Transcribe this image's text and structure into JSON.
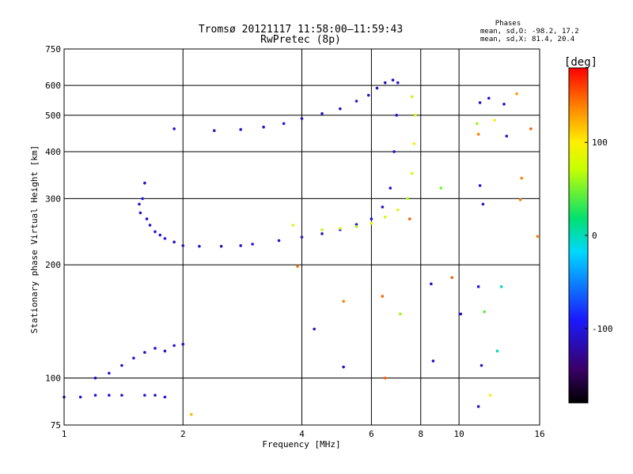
{
  "title": "Tromsø 20121117 11:58:00–11:59:43",
  "subtitle": "RwPretec (8p)",
  "stats": {
    "heading": "Phases",
    "line1": "mean, sd,O: -98.2, 17.2",
    "line2": "mean, sd,X:  81.4, 20.4"
  },
  "colorbar": {
    "label": "[deg]",
    "ticks": [
      "100",
      "0",
      "-100"
    ],
    "tick_values": [
      100,
      0,
      -100
    ],
    "range": [
      -180,
      180
    ]
  },
  "chart_data": {
    "type": "scatter",
    "title": "Tromsø 20121117 11:58:00–11:59:43",
    "subtitle": "RwPretec (8p)",
    "xlabel": "Frequency [MHz]",
    "ylabel": "Stationary phase Virtual Height [km]",
    "xscale": "log",
    "yscale": "log",
    "xlim": [
      1,
      16
    ],
    "ylim": [
      75,
      750
    ],
    "xticks": [
      1,
      2,
      4,
      6,
      8,
      10,
      16
    ],
    "xtick_labels": [
      "1",
      "2",
      "4",
      "6",
      "8",
      "10",
      "16"
    ],
    "yticks": [
      75,
      100,
      200,
      300,
      400,
      500,
      600,
      750
    ],
    "ytick_labels": [
      "75",
      "100",
      "200",
      "300",
      "400",
      "500",
      "600",
      "750"
    ],
    "grid": true,
    "color_scale": [
      "#000000",
      "#3a0066",
      "#1a1aff",
      "#00d8ff",
      "#00e070",
      "#c8ff00",
      "#ffee00",
      "#ff8800",
      "#ff0000"
    ],
    "series": [
      {
        "values": [
          {
            "x": 1.55,
            "y": 290,
            "phase": -110
          },
          {
            "x": 1.56,
            "y": 275,
            "phase": -105
          },
          {
            "x": 1.58,
            "y": 300,
            "phase": -100
          },
          {
            "x": 1.6,
            "y": 330,
            "phase": -110
          },
          {
            "x": 1.62,
            "y": 265,
            "phase": -100
          },
          {
            "x": 1.65,
            "y": 255,
            "phase": -110
          },
          {
            "x": 1.7,
            "y": 245,
            "phase": -100
          },
          {
            "x": 1.75,
            "y": 240,
            "phase": -110
          },
          {
            "x": 1.8,
            "y": 235,
            "phase": -100
          },
          {
            "x": 1.9,
            "y": 230,
            "phase": -110
          },
          {
            "x": 2.0,
            "y": 225,
            "phase": -110
          },
          {
            "x": 2.2,
            "y": 224,
            "phase": -105
          },
          {
            "x": 2.5,
            "y": 224,
            "phase": -120
          },
          {
            "x": 2.8,
            "y": 225,
            "phase": -110
          },
          {
            "x": 3.0,
            "y": 227,
            "phase": -100
          },
          {
            "x": 3.5,
            "y": 232,
            "phase": -110
          },
          {
            "x": 4.0,
            "y": 237,
            "phase": -105
          },
          {
            "x": 4.5,
            "y": 242,
            "phase": -110
          },
          {
            "x": 5.0,
            "y": 248,
            "phase": -100
          },
          {
            "x": 5.5,
            "y": 256,
            "phase": -110
          },
          {
            "x": 6.0,
            "y": 265,
            "phase": -105
          },
          {
            "x": 6.4,
            "y": 285,
            "phase": -110
          },
          {
            "x": 6.7,
            "y": 320,
            "phase": -105
          },
          {
            "x": 6.85,
            "y": 400,
            "phase": -110
          },
          {
            "x": 6.95,
            "y": 500,
            "phase": -105
          },
          {
            "x": 7.0,
            "y": 610,
            "phase": -100
          }
        ]
      },
      {
        "values": [
          {
            "x": 2.4,
            "y": 455,
            "phase": -110
          },
          {
            "x": 2.8,
            "y": 458,
            "phase": -105
          },
          {
            "x": 3.2,
            "y": 465,
            "phase": -110
          },
          {
            "x": 3.6,
            "y": 475,
            "phase": -100
          },
          {
            "x": 4.0,
            "y": 490,
            "phase": -110
          },
          {
            "x": 4.5,
            "y": 505,
            "phase": -105
          },
          {
            "x": 5.0,
            "y": 520,
            "phase": -110
          },
          {
            "x": 5.5,
            "y": 545,
            "phase": -100
          },
          {
            "x": 5.9,
            "y": 565,
            "phase": -110
          },
          {
            "x": 6.2,
            "y": 590,
            "phase": -105
          },
          {
            "x": 6.5,
            "y": 610,
            "phase": -110
          },
          {
            "x": 6.8,
            "y": 620,
            "phase": -100
          }
        ]
      },
      {
        "values": [
          {
            "x": 3.8,
            "y": 255,
            "phase": 85
          },
          {
            "x": 4.5,
            "y": 248,
            "phase": 70
          },
          {
            "x": 5.0,
            "y": 250,
            "phase": 80
          },
          {
            "x": 5.5,
            "y": 253,
            "phase": 60
          },
          {
            "x": 6.0,
            "y": 258,
            "phase": 90
          },
          {
            "x": 6.5,
            "y": 268,
            "phase": 75
          },
          {
            "x": 7.0,
            "y": 280,
            "phase": 85
          },
          {
            "x": 7.4,
            "y": 300,
            "phase": 65
          },
          {
            "x": 7.6,
            "y": 350,
            "phase": 80
          },
          {
            "x": 7.7,
            "y": 420,
            "phase": 90
          },
          {
            "x": 7.75,
            "y": 500,
            "phase": 75
          },
          {
            "x": 7.6,
            "y": 560,
            "phase": 70
          }
        ]
      },
      {
        "values": [
          {
            "x": 1.2,
            "y": 100,
            "phase": -110
          },
          {
            "x": 1.3,
            "y": 103,
            "phase": -100
          },
          {
            "x": 1.4,
            "y": 108,
            "phase": -110
          },
          {
            "x": 1.5,
            "y": 113,
            "phase": -105
          },
          {
            "x": 1.6,
            "y": 117,
            "phase": -110
          },
          {
            "x": 1.7,
            "y": 120,
            "phase": -100
          },
          {
            "x": 1.8,
            "y": 118,
            "phase": -110
          },
          {
            "x": 1.9,
            "y": 122,
            "phase": -105
          },
          {
            "x": 2.0,
            "y": 123,
            "phase": -110
          }
        ]
      },
      {
        "values": [
          {
            "x": 1.0,
            "y": 89,
            "phase": -110
          },
          {
            "x": 1.1,
            "y": 89,
            "phase": -105
          },
          {
            "x": 1.2,
            "y": 90,
            "phase": -110
          },
          {
            "x": 1.3,
            "y": 90,
            "phase": -100
          },
          {
            "x": 1.4,
            "y": 90,
            "phase": -110
          },
          {
            "x": 1.6,
            "y": 90,
            "phase": -105
          },
          {
            "x": 1.7,
            "y": 90,
            "phase": -110
          },
          {
            "x": 1.8,
            "y": 89,
            "phase": -100
          }
        ]
      },
      {
        "values": [
          {
            "x": 1.9,
            "y": 460,
            "phase": -110
          },
          {
            "x": 2.1,
            "y": 80,
            "phase": 120
          },
          {
            "x": 3.9,
            "y": 198,
            "phase": 140
          },
          {
            "x": 4.3,
            "y": 135,
            "phase": -110
          },
          {
            "x": 5.1,
            "y": 160,
            "phase": 140
          },
          {
            "x": 5.1,
            "y": 107,
            "phase": -110
          },
          {
            "x": 6.4,
            "y": 165,
            "phase": 150
          },
          {
            "x": 6.5,
            "y": 100,
            "phase": 150
          },
          {
            "x": 7.1,
            "y": 148,
            "phase": 60
          },
          {
            "x": 7.5,
            "y": 265,
            "phase": 150
          },
          {
            "x": 8.5,
            "y": 178,
            "phase": -110
          },
          {
            "x": 8.6,
            "y": 111,
            "phase": -110
          },
          {
            "x": 9.6,
            "y": 185,
            "phase": 150
          },
          {
            "x": 10.1,
            "y": 148,
            "phase": -110
          },
          {
            "x": 9.0,
            "y": 320,
            "phase": 50
          },
          {
            "x": 11.3,
            "y": 540,
            "phase": -110
          },
          {
            "x": 11.9,
            "y": 555,
            "phase": -110
          },
          {
            "x": 11.3,
            "y": 325,
            "phase": -105
          },
          {
            "x": 11.5,
            "y": 290,
            "phase": -110
          },
          {
            "x": 11.2,
            "y": 175,
            "phase": -100
          },
          {
            "x": 11.6,
            "y": 150,
            "phase": 40
          },
          {
            "x": 11.4,
            "y": 108,
            "phase": -110
          },
          {
            "x": 11.2,
            "y": 84,
            "phase": -110
          },
          {
            "x": 12.0,
            "y": 90,
            "phase": 100
          },
          {
            "x": 12.5,
            "y": 118,
            "phase": 0
          },
          {
            "x": 12.8,
            "y": 175,
            "phase": 0
          },
          {
            "x": 13.2,
            "y": 440,
            "phase": -110
          },
          {
            "x": 13.0,
            "y": 535,
            "phase": -110
          },
          {
            "x": 14.0,
            "y": 570,
            "phase": 130
          },
          {
            "x": 14.4,
            "y": 340,
            "phase": 140
          },
          {
            "x": 14.3,
            "y": 298,
            "phase": 140
          },
          {
            "x": 15.2,
            "y": 460,
            "phase": 150
          },
          {
            "x": 15.8,
            "y": 238,
            "phase": 140
          },
          {
            "x": 11.1,
            "y": 475,
            "phase": 60
          },
          {
            "x": 12.3,
            "y": 485,
            "phase": 100
          },
          {
            "x": 11.2,
            "y": 445,
            "phase": 140
          }
        ]
      }
    ]
  }
}
